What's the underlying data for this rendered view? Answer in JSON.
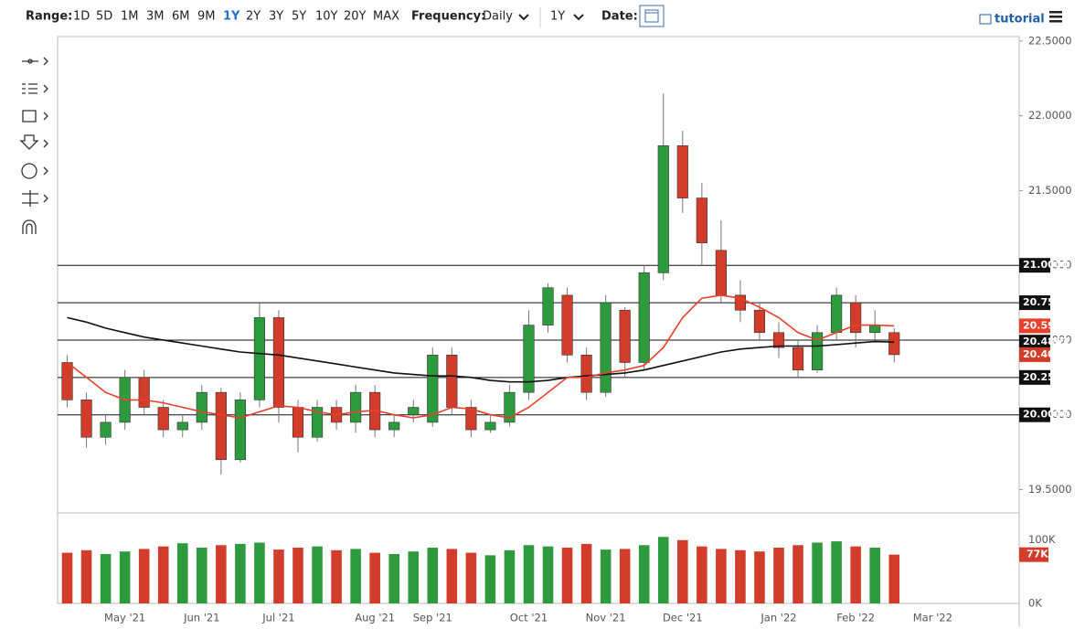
{
  "toolbar": {
    "range_label": "Range:",
    "ranges": [
      "1D",
      "5D",
      "1M",
      "3M",
      "6M",
      "9M",
      "1Y",
      "2Y",
      "3Y",
      "5Y",
      "10Y",
      "20Y",
      "MAX"
    ],
    "active_range": 6,
    "frequency_label": "Frequency:",
    "frequency": "Daily",
    "period": "1Y",
    "date_label": "Date:",
    "tutorial": "tutorial"
  },
  "chart_data": {
    "type": "candlestick",
    "categories": [
      null,
      null,
      null,
      "May '21",
      null,
      null,
      null,
      "Jun '21",
      null,
      null,
      null,
      "Jul '21",
      null,
      null,
      null,
      null,
      "Aug '21",
      null,
      null,
      "Sep '21",
      null,
      null,
      null,
      null,
      "Oct '21",
      null,
      null,
      null,
      "Nov '21",
      null,
      null,
      null,
      "Dec '21",
      null,
      null,
      null,
      null,
      "Jan '22",
      null,
      null,
      null,
      "Feb '22",
      null,
      null,
      null,
      "Mar '22",
      null,
      null,
      null,
      null
    ],
    "open": [
      20.35,
      20.1,
      19.85,
      19.95,
      20.25,
      20.05,
      19.9,
      19.95,
      20.15,
      19.7,
      20.1,
      20.65,
      20.05,
      19.85,
      20.05,
      19.95,
      20.15,
      19.9,
      20.0,
      19.95,
      20.4,
      20.05,
      19.9,
      19.95,
      20.15,
      20.6,
      20.8,
      20.4,
      20.15,
      20.7,
      20.35,
      20.95,
      21.8,
      21.45,
      21.1,
      20.8,
      20.7,
      20.55,
      20.45,
      20.3,
      20.55,
      20.75,
      20.55,
      20.55,
      null,
      null,
      null,
      null,
      null,
      null
    ],
    "high": [
      20.4,
      20.15,
      20.0,
      20.3,
      20.3,
      20.1,
      20.0,
      20.2,
      20.18,
      20.15,
      20.75,
      20.7,
      20.1,
      20.1,
      20.1,
      20.2,
      20.2,
      20.0,
      20.1,
      20.45,
      20.45,
      20.1,
      20.0,
      20.2,
      20.7,
      20.88,
      20.85,
      20.45,
      20.8,
      20.72,
      21.0,
      22.15,
      21.9,
      21.55,
      21.3,
      20.9,
      20.75,
      20.62,
      20.5,
      20.6,
      20.85,
      20.8,
      20.7,
      20.58,
      null,
      null,
      null,
      null,
      null,
      null
    ],
    "low": [
      20.05,
      19.78,
      19.8,
      19.9,
      20.0,
      19.85,
      19.85,
      19.9,
      19.6,
      19.68,
      20.05,
      19.95,
      19.75,
      19.82,
      19.9,
      19.88,
      19.85,
      19.85,
      19.95,
      19.92,
      20.0,
      19.85,
      19.88,
      19.92,
      20.1,
      20.55,
      20.35,
      20.1,
      20.12,
      20.25,
      20.3,
      20.9,
      21.35,
      21.0,
      20.75,
      20.62,
      20.5,
      20.38,
      20.25,
      20.28,
      20.5,
      20.45,
      20.5,
      20.35,
      null,
      null,
      null,
      null,
      null,
      null
    ],
    "close": [
      20.1,
      19.85,
      19.95,
      20.25,
      20.05,
      19.9,
      19.95,
      20.15,
      19.7,
      20.1,
      20.65,
      20.05,
      19.85,
      20.05,
      19.95,
      20.15,
      19.9,
      19.95,
      20.05,
      20.4,
      20.05,
      19.9,
      19.95,
      20.15,
      20.6,
      20.85,
      20.4,
      20.15,
      20.75,
      20.35,
      20.95,
      21.8,
      21.45,
      21.15,
      20.8,
      20.7,
      20.55,
      20.45,
      20.3,
      20.55,
      20.8,
      20.55,
      20.6,
      20.4022,
      null,
      null,
      null,
      null,
      null,
      null
    ],
    "close_label": "20.4022",
    "up_color": "#2e9a3e",
    "down_color": "#d23c2a",
    "ylim": [
      19.35,
      22.53
    ],
    "yticks": [
      {
        "value": 19.5,
        "label": "19.5000"
      },
      {
        "value": 20,
        "label": "20.0000"
      },
      {
        "value": 20.5,
        "label": "20.5000"
      },
      {
        "value": 21,
        "label": "21.0000"
      },
      {
        "value": 21.5,
        "label": "21.5000"
      },
      {
        "value": 22,
        "label": "22.0000"
      },
      {
        "value": 22.5,
        "label": "22.5000"
      }
    ],
    "levels": [
      {
        "value": 21,
        "label": "21.0000"
      },
      {
        "value": 20.75,
        "label": "20.7500"
      },
      {
        "value": 20.5
      },
      {
        "value": 20.25,
        "label": "20.2500"
      },
      {
        "value": 20,
        "label": "20.0000"
      }
    ],
    "moving_averages": [
      {
        "color": "#111111",
        "last_label": "20.4863",
        "values": [
          20.65,
          20.62,
          20.58,
          20.55,
          20.52,
          20.5,
          20.48,
          20.46,
          20.44,
          20.42,
          20.41,
          20.4,
          20.38,
          20.36,
          20.34,
          20.32,
          20.3,
          20.28,
          20.27,
          20.26,
          20.26,
          20.25,
          20.23,
          20.22,
          20.22,
          20.23,
          20.25,
          20.26,
          20.27,
          20.28,
          20.3,
          20.33,
          20.36,
          20.39,
          20.42,
          20.44,
          20.45,
          20.46,
          20.46,
          20.46,
          20.47,
          20.48,
          20.49,
          20.4863,
          null,
          null,
          null,
          null,
          null,
          null
        ]
      },
      {
        "color": "#e8402a",
        "last_label": "20.5952",
        "values": [
          20.35,
          20.25,
          20.15,
          20.1,
          20.1,
          20.08,
          20.05,
          20.02,
          20.0,
          19.98,
          20.02,
          20.06,
          20.05,
          20.02,
          20.0,
          20.02,
          20.03,
          20.0,
          19.98,
          20.0,
          20.05,
          20.04,
          20.0,
          19.98,
          20.05,
          20.15,
          20.25,
          20.25,
          20.28,
          20.3,
          20.33,
          20.45,
          20.65,
          20.78,
          20.8,
          20.78,
          20.72,
          20.65,
          20.55,
          20.5,
          20.55,
          20.6,
          20.6,
          20.5952,
          null,
          null,
          null,
          null,
          null,
          null
        ]
      }
    ],
    "volume": {
      "values": [
        80,
        84,
        78,
        82,
        86,
        90,
        95,
        88,
        92,
        94,
        96,
        85,
        88,
        90,
        84,
        86,
        80,
        78,
        82,
        88,
        86,
        80,
        76,
        84,
        92,
        90,
        88,
        94,
        85,
        86,
        92,
        105,
        100,
        90,
        86,
        84,
        82,
        88,
        92,
        96,
        98,
        90,
        88,
        77,
        null,
        null,
        null,
        null,
        null,
        null
      ],
      "last_label": "77K",
      "vlim": [
        0,
        140
      ],
      "vticks": [
        {
          "value": 100,
          "label": "100K"
        },
        {
          "value": 0,
          "label": "0K"
        }
      ]
    }
  }
}
